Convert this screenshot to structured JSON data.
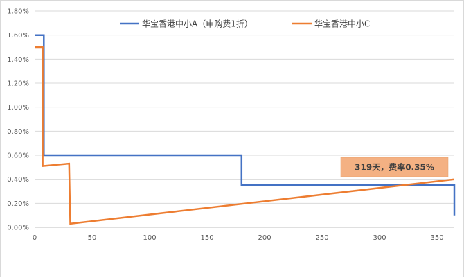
{
  "chart_data": {
    "type": "line",
    "title": "",
    "xlabel": "",
    "ylabel": "",
    "xlim": [
      0,
      365
    ],
    "ylim": [
      0,
      1.8
    ],
    "x_ticks": [
      0,
      50,
      100,
      150,
      200,
      250,
      300,
      350
    ],
    "y_ticks": [
      0,
      0.2,
      0.4,
      0.6,
      0.8,
      1.0,
      1.2,
      1.4,
      1.6,
      1.8
    ],
    "x_tick_labels": [
      "0",
      "50",
      "100",
      "150",
      "200",
      "250",
      "300",
      "350"
    ],
    "y_tick_labels": [
      "0.00%",
      "0.20%",
      "0.40%",
      "0.60%",
      "0.80%",
      "1.00%",
      "1.20%",
      "1.40%",
      "1.60%",
      "1.80%"
    ],
    "grid": "horizontal",
    "legend_position": "top",
    "series": [
      {
        "name": "华宝香港中小A（申购费1折）",
        "color": "#4472C4",
        "points": [
          [
            0,
            1.6
          ],
          [
            8,
            1.6
          ],
          [
            8,
            0.6
          ],
          [
            180,
            0.6
          ],
          [
            180,
            0.35
          ],
          [
            365,
            0.35
          ],
          [
            365,
            0.1
          ]
        ]
      },
      {
        "name": "华宝香港中小C",
        "color": "#ED7D31",
        "points": [
          [
            0,
            1.5
          ],
          [
            7,
            1.5
          ],
          [
            7,
            0.51
          ],
          [
            30,
            0.53
          ],
          [
            31,
            0.03
          ],
          [
            365,
            0.4
          ]
        ]
      }
    ],
    "annotations": [
      {
        "text": "319天，费率0.35%",
        "x": 319,
        "y": 0.35,
        "fill": "#F4B183"
      }
    ]
  }
}
